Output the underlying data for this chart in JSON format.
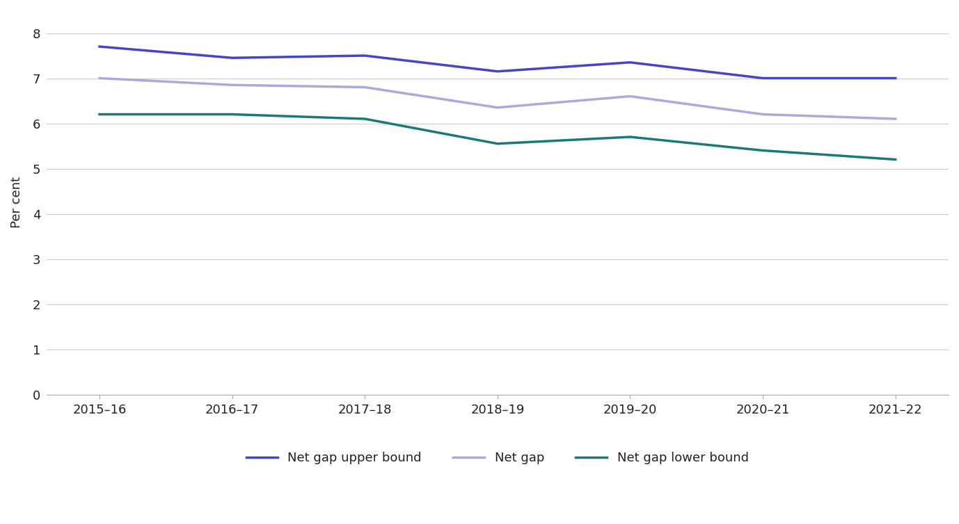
{
  "categories": [
    "2015–16",
    "2016–17",
    "2017–18",
    "2018–19",
    "2019–20",
    "2020–21",
    "2021–22"
  ],
  "upper_bound": [
    7.7,
    7.45,
    7.5,
    7.15,
    7.35,
    7.0,
    7.0
  ],
  "net_gap": [
    7.0,
    6.85,
    6.8,
    6.35,
    6.6,
    6.2,
    6.1
  ],
  "lower_bound": [
    6.2,
    6.2,
    6.1,
    5.55,
    5.7,
    5.4,
    5.2
  ],
  "upper_bound_color": "#4444cc",
  "net_gap_color": "#aaaadd",
  "lower_bound_color": "#1a7a78",
  "upper_bound_label": "Net gap upper bound",
  "net_gap_label": "Net gap",
  "lower_bound_label": "Net gap lower bound",
  "ylabel": "Per cent",
  "ylim": [
    0,
    8.5
  ],
  "yticks": [
    0,
    1,
    2,
    3,
    4,
    5,
    6,
    7,
    8
  ],
  "background_color": "#ffffff",
  "grid_color": "#cccccc",
  "line_width": 2.5,
  "tick_fontsize": 13,
  "label_fontsize": 13,
  "legend_fontsize": 13
}
